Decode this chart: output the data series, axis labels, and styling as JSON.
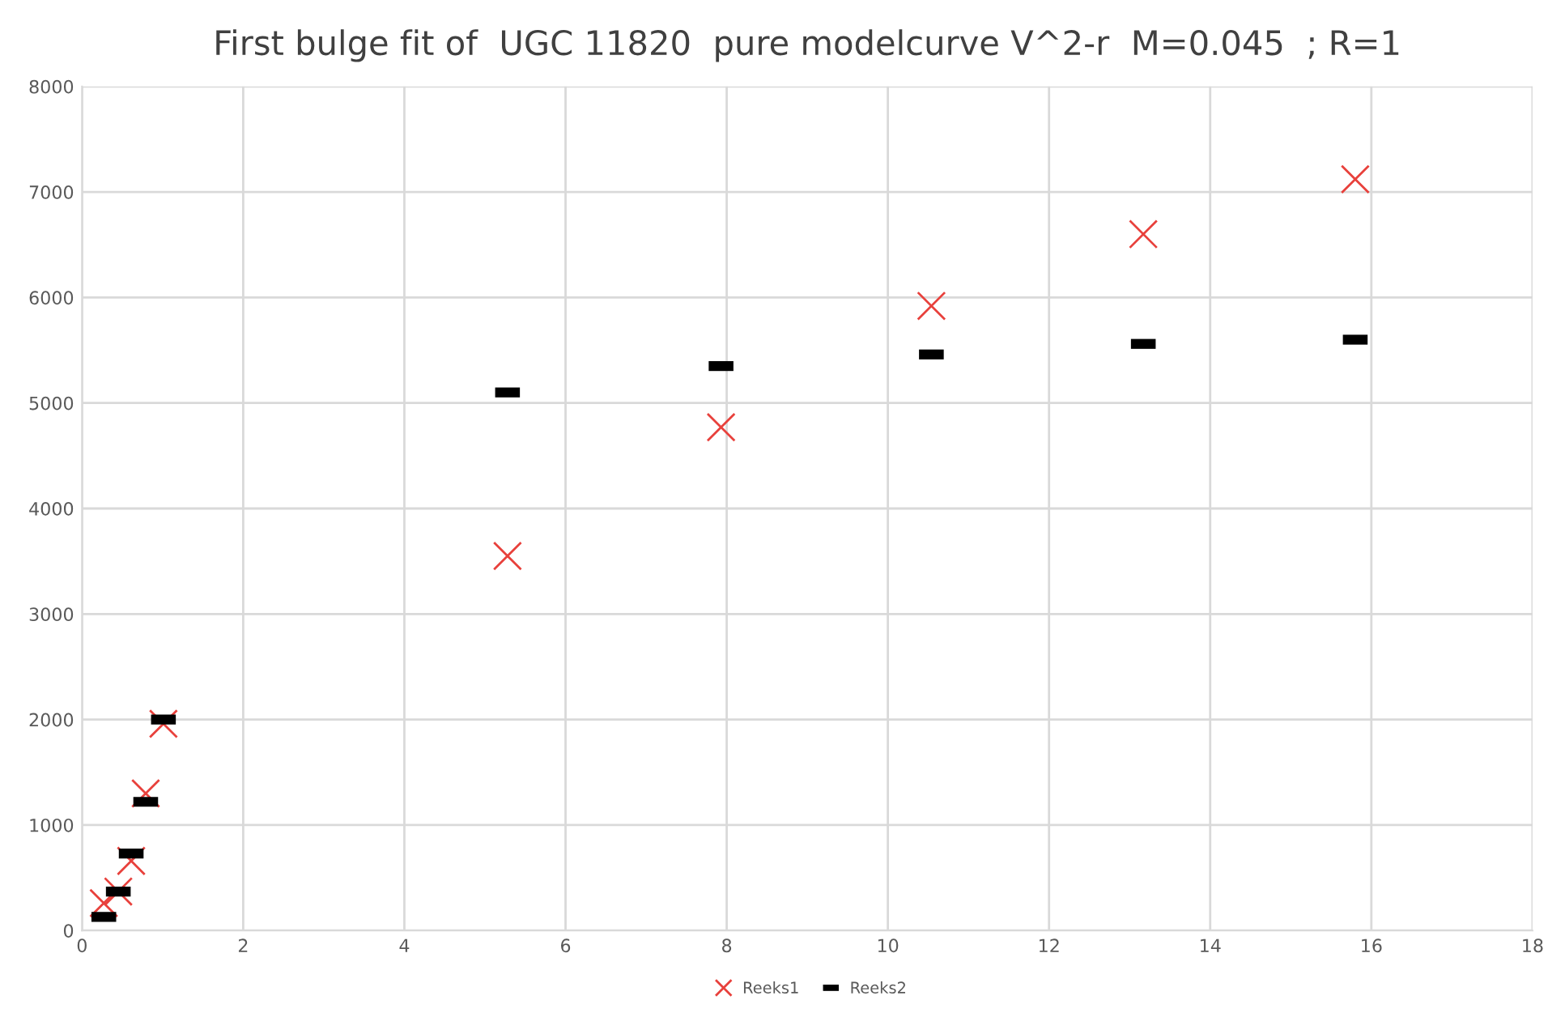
{
  "chart_data": {
    "type": "scatter",
    "title": "First bulge fit of  UGC 11820  pure modelcurve V^2-r  M=0.045  ; R=1",
    "series": [
      {
        "name": "Reeks1",
        "color": "#e8413c",
        "marker": "cross",
        "x": [
          0.27,
          0.45,
          0.61,
          0.79,
          1.01,
          5.28,
          7.93,
          10.54,
          13.17,
          15.8
        ],
        "values": [
          260,
          370,
          660,
          1300,
          1960,
          3550,
          4770,
          5920,
          6600,
          7120
        ]
      },
      {
        "name": "Reeks2",
        "color": "#000000",
        "marker": "square",
        "x": [
          0.27,
          0.45,
          0.61,
          0.79,
          1.01,
          5.28,
          7.93,
          10.54,
          13.17,
          15.8
        ],
        "values": [
          130,
          370,
          730,
          1220,
          2000,
          5100,
          5350,
          5460,
          5560,
          5600
        ]
      }
    ],
    "xlim": [
      0,
      18
    ],
    "xticks": [
      0,
      2,
      4,
      6,
      8,
      10,
      12,
      14,
      16,
      18
    ],
    "ylim": [
      0,
      8000
    ],
    "yticks": [
      0,
      1000,
      2000,
      3000,
      4000,
      5000,
      6000,
      7000,
      8000
    ],
    "grid": true,
    "legend": "bottom"
  }
}
